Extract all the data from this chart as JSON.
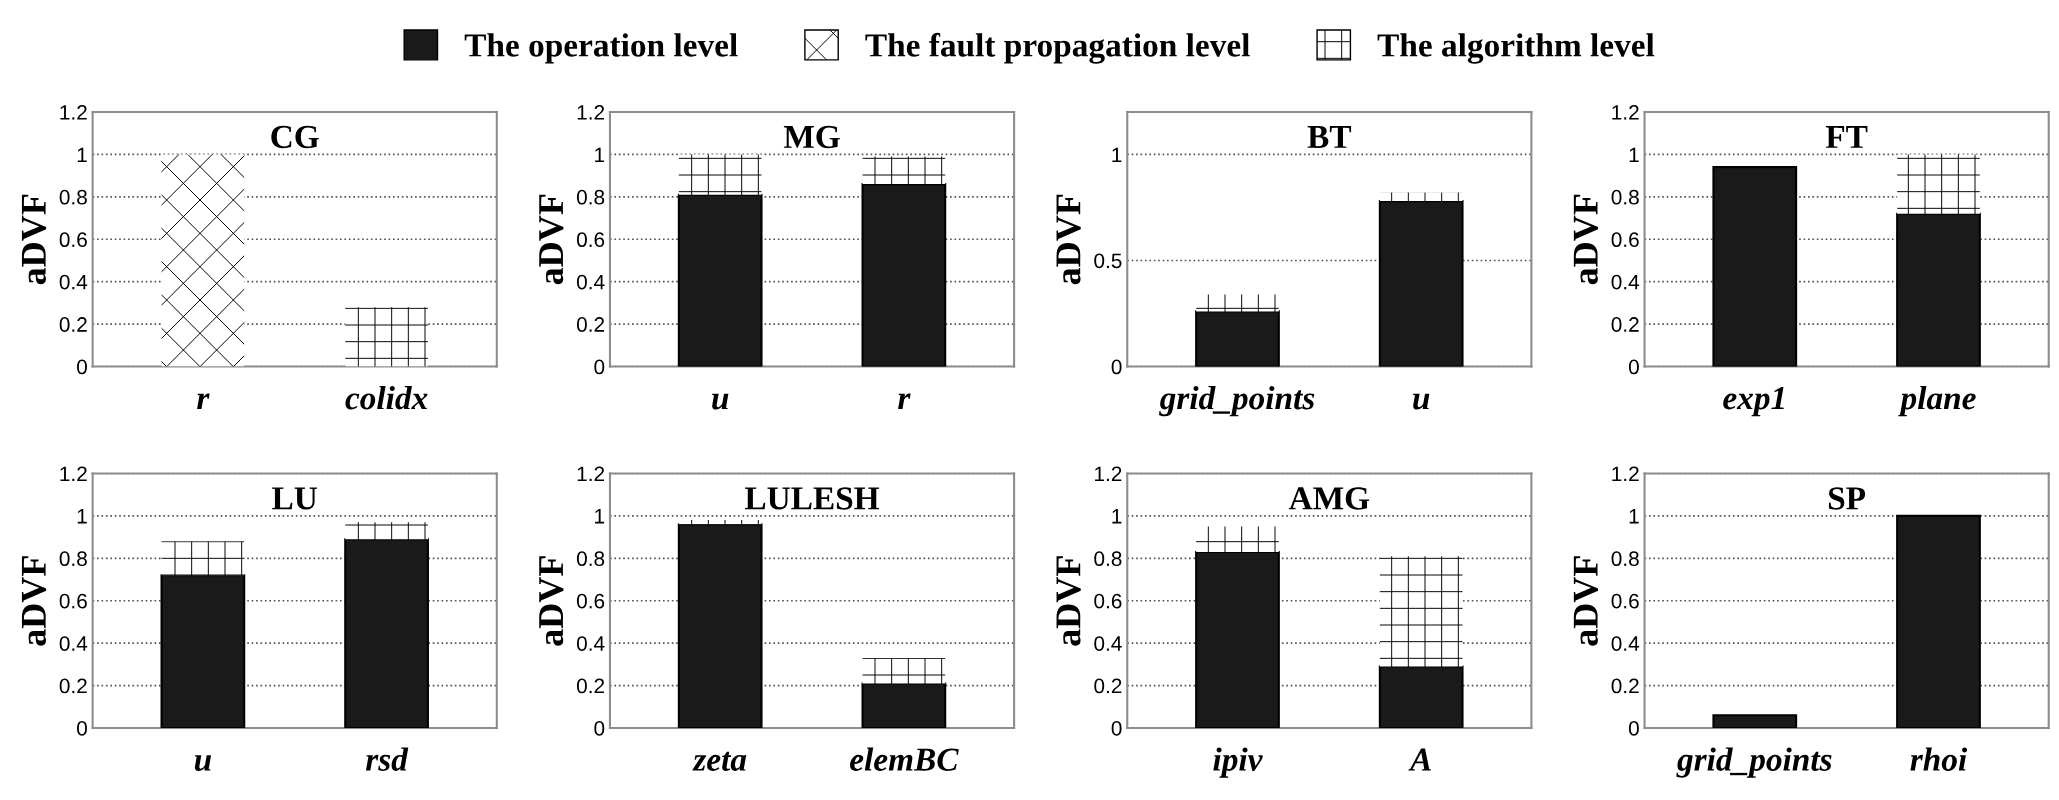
{
  "chart_data": [
    {
      "type": "bar",
      "title": "CG",
      "ylabel": "aDVF",
      "stacked": true,
      "categories": [
        "r",
        "colidx"
      ],
      "ylim": [
        0,
        1.2
      ],
      "yticks": [
        0,
        0.2,
        0.4,
        0.6,
        0.8,
        1,
        1.2
      ],
      "grid": "y",
      "legend": "top",
      "series": [
        {
          "name": "The operation level",
          "color": "#1a1a1a",
          "values": [
            null,
            null
          ]
        },
        {
          "name": "The fault propagation level",
          "color": "#ffffff",
          "values": [
            1.0,
            null
          ]
        },
        {
          "name": "The algorithm level",
          "color": "#ffffff",
          "values": [
            null,
            0.28
          ]
        }
      ]
    },
    {
      "type": "bar",
      "title": "MG",
      "ylabel": "aDVF",
      "stacked": true,
      "categories": [
        "u",
        "r"
      ],
      "ylim": [
        0,
        1.2
      ],
      "yticks": [
        0,
        0.2,
        0.4,
        0.6,
        0.8,
        1,
        1.2
      ],
      "grid": "y",
      "series": [
        {
          "color": "#1a1a1a",
          "values": [
            0.81,
            0.86
          ]
        },
        {
          "color": "#ffffff",
          "values": [
            0.19,
            0.13
          ]
        }
      ]
    },
    {
      "type": "bar",
      "title": "BT",
      "ylabel": "aDVF",
      "stacked": true,
      "categories": [
        "grid_points",
        "u"
      ],
      "ylim": [
        0,
        1.2
      ],
      "yticks": [
        0,
        0.5,
        1
      ],
      "grid": "y",
      "series": [
        {
          "color": "#1a1a1a",
          "values": [
            0.26,
            0.78
          ]
        },
        {
          "color": "#ffffff",
          "values": [
            0.08,
            0.04
          ]
        }
      ]
    },
    {
      "type": "bar",
      "title": "FT",
      "ylabel": "aDVF",
      "stacked": true,
      "categories": [
        "exp1",
        "plane"
      ],
      "ylim": [
        0,
        1.2
      ],
      "yticks": [
        0,
        0.2,
        0.4,
        0.6,
        0.8,
        1,
        1.2
      ],
      "grid": "y",
      "series": [
        {
          "color": "#1a1a1a",
          "values": [
            0.94,
            0.72
          ]
        },
        {
          "color": "#ffffff",
          "values": [
            null,
            0.28
          ]
        }
      ]
    },
    {
      "type": "bar",
      "title": "LU",
      "ylabel": "aDVF",
      "stacked": true,
      "categories": [
        "u",
        "rsd"
      ],
      "ylim": [
        0,
        1.2
      ],
      "yticks": [
        0,
        0.2,
        0.4,
        0.6,
        0.8,
        1,
        1.2
      ],
      "grid": "y",
      "series": [
        {
          "color": "#1a1a1a",
          "values": [
            0.72,
            0.89
          ]
        },
        {
          "color": "#ffffff",
          "values": [
            0.16,
            0.08
          ]
        }
      ]
    },
    {
      "type": "bar",
      "title": "LULESH",
      "ylabel": "aDVF",
      "stacked": true,
      "categories": [
        "zeta",
        "elemBC"
      ],
      "ylim": [
        0,
        1.2
      ],
      "yticks": [
        0,
        0.2,
        0.4,
        0.6,
        0.8,
        1,
        1.2
      ],
      "grid": "y",
      "series": [
        {
          "color": "#1a1a1a",
          "values": [
            0.96,
            0.21
          ]
        },
        {
          "color": "#ffffff",
          "values": [
            0.02,
            0.12
          ]
        }
      ]
    },
    {
      "type": "bar",
      "title": "AMG",
      "ylabel": "aDVF",
      "stacked": true,
      "categories": [
        "ipiv",
        "A"
      ],
      "ylim": [
        0,
        1.2
      ],
      "yticks": [
        0,
        0.2,
        0.4,
        0.6,
        0.8,
        1,
        1.2
      ],
      "grid": "y",
      "series": [
        {
          "color": "#1a1a1a",
          "values": [
            0.83,
            0.29
          ]
        },
        {
          "color": "#ffffff",
          "values": [
            0.12,
            0.52
          ]
        }
      ]
    },
    {
      "type": "bar",
      "title": "SP",
      "ylabel": "aDVF",
      "stacked": true,
      "categories": [
        "grid_points",
        "rhoi"
      ],
      "ylim": [
        0,
        1.2
      ],
      "yticks": [
        0,
        0.2,
        0.4,
        0.6,
        0.8,
        1,
        1.2
      ],
      "grid": "y",
      "series": [
        {
          "color": "#1a1a1a",
          "values": [
            0.06,
            1.0
          ]
        }
      ]
    }
  ]
}
